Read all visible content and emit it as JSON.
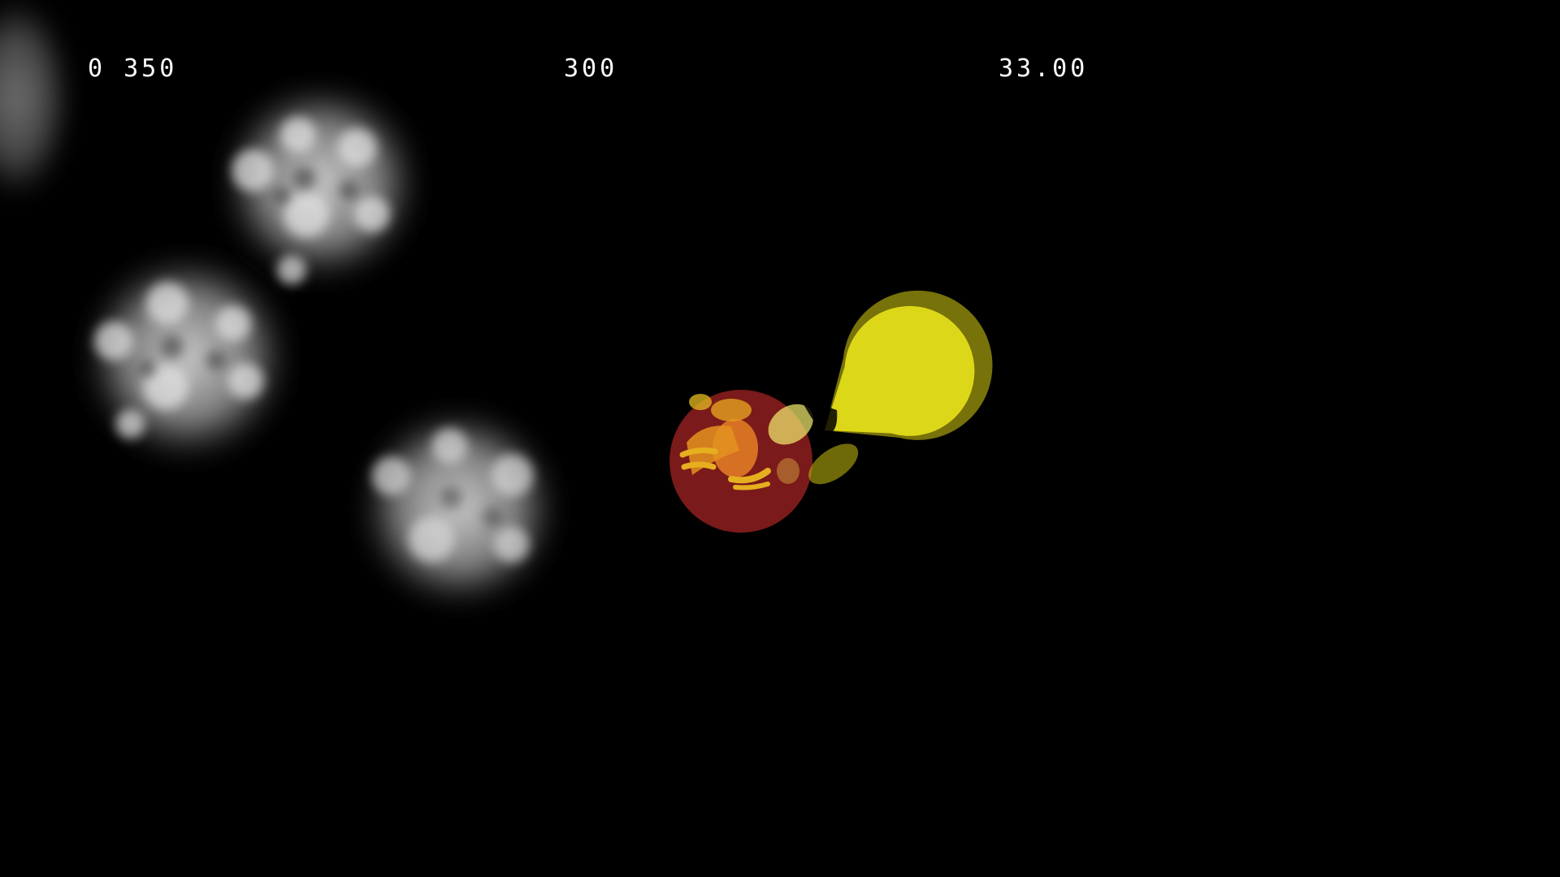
{
  "hud": {
    "score": "0 350",
    "bonus": "300",
    "timer": "33.00"
  },
  "colors": {
    "background": "#000000",
    "hud_text": "#ffffff",
    "pacman": "#e8e21c",
    "ghost_body": "#7a1a1a",
    "ghost_flash": "#e07a25",
    "smoke": "#bdbdbd"
  },
  "icons": {
    "player": "pacman-icon",
    "target": "ghost-icon",
    "particles": "smoke-cloud-icon"
  }
}
